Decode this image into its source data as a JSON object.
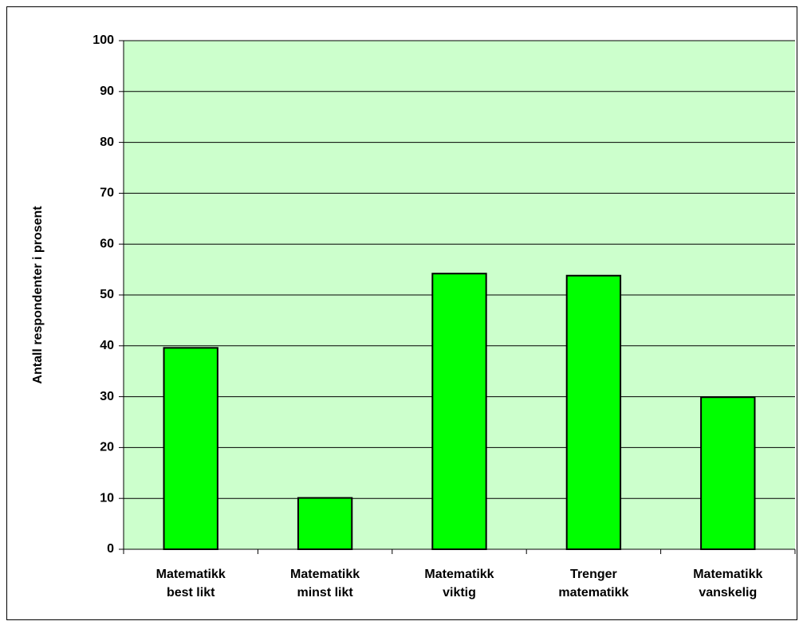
{
  "chart_data": {
    "type": "bar",
    "y_label": "Antall respondenter i prosent",
    "categories": [
      [
        "Matematikk",
        "best likt"
      ],
      [
        "Matematikk",
        "minst likt"
      ],
      [
        "Matematikk",
        "viktig"
      ],
      [
        "Trenger",
        "matematikk"
      ],
      [
        "Matematikk",
        "vanskelig"
      ]
    ],
    "values": [
      39.6,
      10.1,
      54.2,
      53.8,
      29.9
    ],
    "color": "#00ff00",
    "background": "#ccffcc",
    "ylim": [
      0,
      100
    ],
    "yticks": [
      0,
      10,
      20,
      30,
      40,
      50,
      60,
      70,
      80,
      90,
      100
    ],
    "grid": true
  }
}
